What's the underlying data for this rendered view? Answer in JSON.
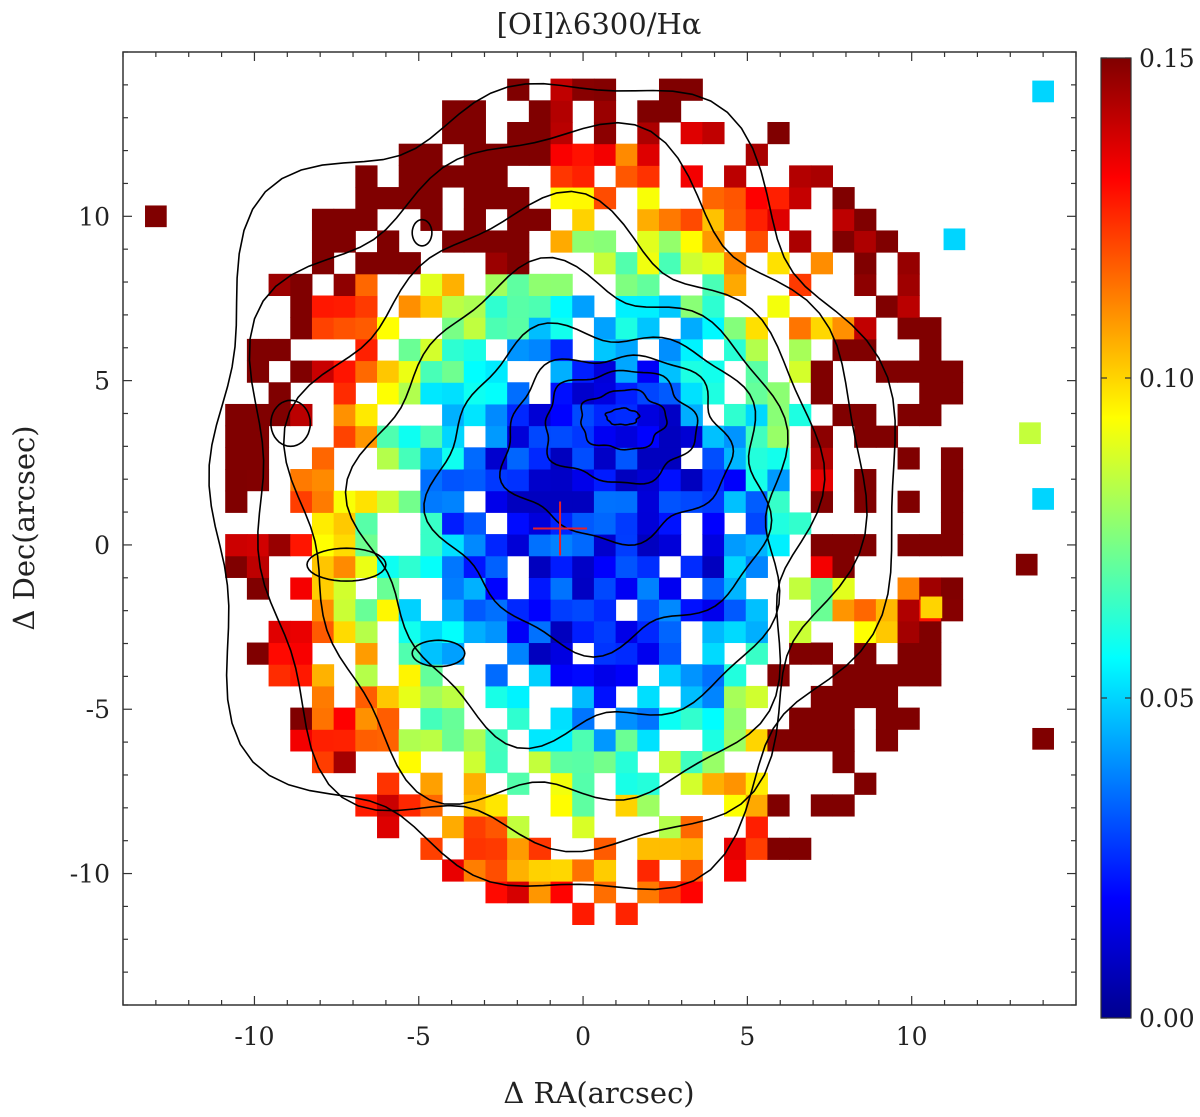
{
  "chart_data": {
    "type": "heatmap",
    "title": "[OI]λ6300/Hα",
    "xlabel": "Δ RA(arcsec)",
    "ylabel": "Δ Dec(arcsec)",
    "xlim": [
      -14,
      15
    ],
    "ylim": [
      -14,
      15
    ],
    "x_ticks": [
      -10,
      -5,
      0,
      5,
      10
    ],
    "x_tick_labels": [
      "-10",
      "-5",
      "0",
      "5",
      "10"
    ],
    "y_ticks": [
      -10,
      -5,
      0,
      5,
      10
    ],
    "y_tick_labels": [
      "-10",
      "-5",
      "0",
      "5",
      "10"
    ],
    "colorbar": {
      "min": 0.0,
      "max": 0.15,
      "ticks": [
        0.0,
        0.05,
        0.1,
        0.15
      ],
      "tick_labels": [
        "0.00",
        "0.05",
        "0.10",
        "0.15"
      ],
      "colormap": "jet"
    },
    "grid": false,
    "pixel_size_arcsec": 0.66,
    "marker": {
      "shape": "plus",
      "color": "#e8202a",
      "x": -0.7,
      "y": 0.5
    },
    "contour_color": "#000000",
    "notes": "Line-ratio map; blue (~0.02) in the nucleus, rising to >0.15 (dark red) at the NE, SE and S edges; black contours show continuum flux."
  }
}
